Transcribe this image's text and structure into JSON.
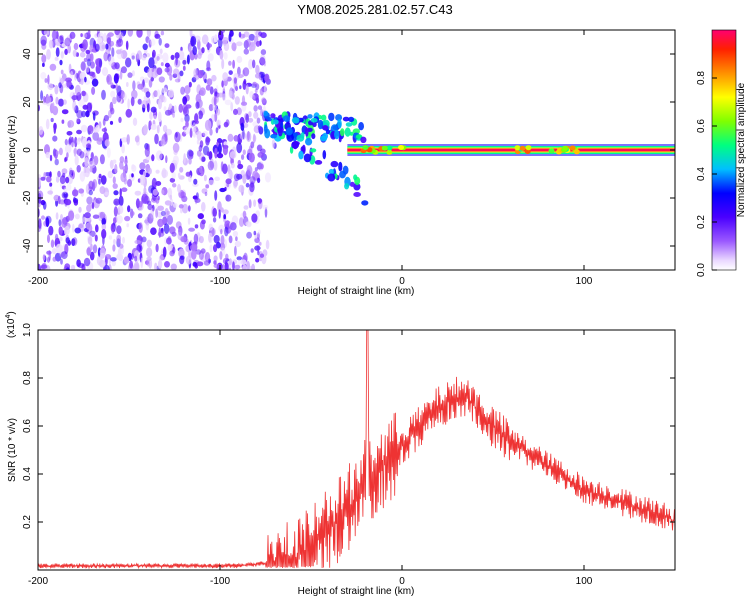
{
  "title": "YM08.2025.281.02.57.C43",
  "chart_data": [
    {
      "type": "heatmap",
      "xlabel": "Height of straight line (km)",
      "ylabel": "Frequency (Hz)",
      "xlim": [
        -200,
        150
      ],
      "ylim": [
        -50,
        50
      ],
      "xticks": [
        -200,
        -100,
        0,
        100
      ],
      "yticks": [
        -40,
        -20,
        0,
        20,
        40
      ],
      "colorbar": {
        "label": "Normalized spectral amplitude",
        "range": [
          0,
          1
        ],
        "ticks": [
          0.0,
          0.2,
          0.4,
          0.6,
          0.8
        ],
        "tick_labels": [
          "0.0",
          "0.2",
          "0.4",
          "0.6",
          "0.8"
        ],
        "colors": [
          "#ffffff",
          "#e6d2ff",
          "#9b59ff",
          "#5a00ff",
          "#0000ff",
          "#00c8ff",
          "#00ff60",
          "#ccff00",
          "#ffc000",
          "#ff5000",
          "#ff0060"
        ]
      },
      "features": {
        "noise_region_x": [
          -200,
          -75
        ],
        "noise_amplitude": [
          0.0,
          0.15
        ],
        "transition_x": [
          -75,
          -20
        ],
        "transition_freq_hz": [
          12,
          -18
        ],
        "band_x": [
          -30,
          150
        ],
        "band_freq_hz": 0,
        "band_amplitude": 0.98,
        "band_bumps_x": [
          -18,
          -5,
          70,
          85,
          95
        ]
      }
    },
    {
      "type": "line",
      "xlabel": "Height of straight line (km)",
      "ylabel": "SNR (10 * v/v)",
      "scale_label": "(x10",
      "scale_exp": "4",
      "scale_close": ")",
      "xlim": [
        -200,
        150
      ],
      "ylim": [
        0,
        1.0
      ],
      "xticks": [
        -200,
        -100,
        0,
        100
      ],
      "yticks": [
        0.2,
        0.4,
        0.6,
        0.8,
        1.0
      ],
      "ytick_labels": [
        "0.2",
        "0.4",
        "0.6",
        "0.8",
        "1.0"
      ],
      "line_color": "#ee3333",
      "series": [
        {
          "name": "SNR",
          "x": [
            -200,
            -90,
            -75,
            -65,
            -58,
            -50,
            -42,
            -35,
            -30,
            -25,
            -20,
            -19,
            -18,
            -15,
            -10,
            -5,
            0,
            10,
            20,
            30,
            35,
            40,
            50,
            60,
            80,
            100,
            120,
            140,
            150
          ],
          "y": [
            0.02,
            0.02,
            0.03,
            0.06,
            0.1,
            0.14,
            0.2,
            0.25,
            0.3,
            0.35,
            0.45,
            1.0,
            0.4,
            0.45,
            0.48,
            0.52,
            0.55,
            0.62,
            0.7,
            0.74,
            0.75,
            0.7,
            0.62,
            0.55,
            0.45,
            0.35,
            0.3,
            0.25,
            0.22
          ]
        }
      ]
    }
  ]
}
